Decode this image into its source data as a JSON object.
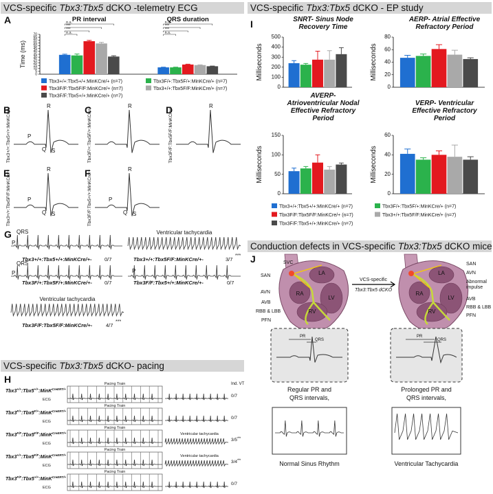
{
  "header_ecg": [
    "VCS-specific",
    "Tbx3:Tbx5",
    "dCKO -telemetry ECG"
  ],
  "header_ep": [
    "VCS-specific",
    "Tbx3:Tbx5",
    "dCKO - EP study"
  ],
  "header_pacing": [
    "VCS-specific",
    "Tbx3:Tbx5",
    "dCKO- pacing"
  ],
  "header_conduction": [
    "Conduction defects in VCS-specific",
    "Tbx3:Tbx5",
    "dCKO mice"
  ],
  "chart_data": [
    {
      "type": "bar",
      "letter": "A",
      "categories": [
        "PR interval",
        "QRS duration"
      ],
      "y_label": "Time (ms)",
      "ylim": [
        0,
        70
      ],
      "yticks": [
        0,
        5,
        10,
        15,
        20,
        25,
        30,
        35,
        40,
        45,
        50,
        55,
        60,
        65,
        70
      ],
      "significance": [
        [
          "n.s.",
          "***",
          "***",
          "n.s."
        ],
        [
          "n.s.",
          "***",
          "***",
          "n.s."
        ]
      ],
      "series": [
        {
          "name": "Tbx3+/+:Tbx5+/+:MinKCre/+ (n=7)",
          "color": "#1f6fd1",
          "values": [
            34,
            12
          ],
          "errors": [
            1.2,
            0.4
          ]
        },
        {
          "name": "Tbx3F/+:Tbx5F/+:MinKCre/+ (n=7)",
          "color": "#2bb24c",
          "values": [
            33,
            12
          ],
          "errors": [
            2.5,
            0.4
          ]
        },
        {
          "name": "Tbx3F/F:Tbx5F/F:MinKCre/+ (n=7)",
          "color": "#e3191f",
          "values": [
            58,
            17
          ],
          "errors": [
            1.5,
            0.6
          ]
        },
        {
          "name": "Tbx3+/+:Tbx5F/F:MinKCre/+ (n=7)",
          "color": "#a9a9a9",
          "values": [
            54,
            16
          ],
          "errors": [
            2,
            0.5
          ]
        },
        {
          "name": "Tbx3F/F:Tbx5+/+:MinKCre/+ (n=7)",
          "color": "#4a4a4a",
          "values": [
            31,
            14
          ],
          "errors": [
            1.5,
            0.4
          ]
        }
      ]
    },
    {
      "type": "bar",
      "letter": "I",
      "title": [
        "SNRT- Sinus Node",
        "Recovery Time"
      ],
      "y_label": "Milliseconds",
      "ylim": [
        0,
        500
      ],
      "yticks": [
        0,
        100,
        200,
        300,
        400,
        500
      ],
      "series": [
        {
          "name": "Tbx3+/+:Tbx5+/+:MinKCre/+ (n=7)",
          "color": "#1f6fd1",
          "values": [
            240
          ],
          "errors": [
            25
          ]
        },
        {
          "name": "Tbx3F/+:Tbx5F/+:MinKCre/+ (n=7)",
          "color": "#2bb24c",
          "values": [
            225
          ],
          "errors": [
            12
          ]
        },
        {
          "name": "Tbx3F/F:Tbx5F/F:MinKCre/+ (n=7)",
          "color": "#e3191f",
          "values": [
            275
          ],
          "errors": [
            85
          ]
        },
        {
          "name": "Tbx3+/+:Tbx5F/F:MinKCre/+ (n=7)",
          "color": "#a9a9a9",
          "values": [
            275
          ],
          "errors": [
            90
          ]
        },
        {
          "name": "Tbx3F/F:Tbx5+/+:MinKCre/+ (n=7)",
          "color": "#4a4a4a",
          "values": [
            330
          ],
          "errors": [
            65
          ]
        }
      ]
    },
    {
      "type": "bar",
      "title": [
        "AERP- Atrial Effective",
        "Refractory Period"
      ],
      "y_label": "Milliseconds",
      "ylim": [
        0,
        80
      ],
      "yticks": [
        0,
        20,
        40,
        60,
        80
      ],
      "series": [
        {
          "color": "#1f6fd1",
          "values": [
            47
          ],
          "errors": [
            4
          ]
        },
        {
          "color": "#2bb24c",
          "values": [
            50
          ],
          "errors": [
            3
          ]
        },
        {
          "color": "#e3191f",
          "values": [
            61
          ],
          "errors": [
            7
          ]
        },
        {
          "color": "#a9a9a9",
          "values": [
            52
          ],
          "errors": [
            7
          ]
        },
        {
          "color": "#4a4a4a",
          "values": [
            45
          ],
          "errors": [
            2
          ]
        }
      ]
    },
    {
      "type": "bar",
      "title": [
        "AVERP-",
        "Atrioventricular Nodal",
        "Effective Refractory",
        "Period"
      ],
      "y_label": "Milliseconds",
      "ylim": [
        0,
        150
      ],
      "yticks": [
        0,
        50,
        100,
        150
      ],
      "series": [
        {
          "color": "#1f6fd1",
          "values": [
            58
          ],
          "errors": [
            8
          ]
        },
        {
          "color": "#2bb24c",
          "values": [
            65
          ],
          "errors": [
            5
          ]
        },
        {
          "color": "#e3191f",
          "values": [
            80
          ],
          "errors": [
            20
          ]
        },
        {
          "color": "#a9a9a9",
          "values": [
            62
          ],
          "errors": [
            8
          ]
        },
        {
          "color": "#4a4a4a",
          "values": [
            75
          ],
          "errors": [
            4
          ]
        }
      ]
    },
    {
      "type": "bar",
      "title": [
        "VERP- Ventricular",
        "Effective Refractory",
        "Period"
      ],
      "y_label": "Milliseconds",
      "ylim": [
        0,
        60
      ],
      "yticks": [
        0,
        20,
        40,
        60
      ],
      "series": [
        {
          "color": "#1f6fd1",
          "values": [
            41
          ],
          "errors": [
            5
          ]
        },
        {
          "color": "#2bb24c",
          "values": [
            35
          ],
          "errors": [
            2
          ]
        },
        {
          "color": "#e3191f",
          "values": [
            40
          ],
          "errors": [
            4
          ]
        },
        {
          "color": "#a9a9a9",
          "values": [
            38
          ],
          "errors": [
            12
          ]
        },
        {
          "color": "#4a4a4a",
          "values": [
            35
          ],
          "errors": [
            3
          ]
        }
      ]
    }
  ],
  "ecg_panels": [
    {
      "letter": "B",
      "genotype": "Tbx3+/+:Tbx5+/+:MinKCre/+",
      "waves": [
        "P",
        "Q",
        "R",
        "S"
      ]
    },
    {
      "letter": "C",
      "genotype": "Tbx3F/+:Tbx5F/+:MinKCre/+",
      "waves": [
        "R"
      ]
    },
    {
      "letter": "D",
      "genotype": "Tbx3F/F:Tbx5F/F:MinKCre/+",
      "waves": [
        "R"
      ]
    },
    {
      "letter": "E",
      "genotype": "Tbx3+/+:Tbx5F/F:MinKCre/+",
      "waves": [
        "P",
        "Q",
        "R",
        "S"
      ]
    },
    {
      "letter": "F",
      "genotype": "Tbx3F/F:Tbx5+/+:MinKCre/+",
      "waves": [
        "P",
        "Q",
        "R",
        "S"
      ]
    }
  ],
  "telemetry": {
    "letter": "G",
    "traces": [
      {
        "labels": [
          "QRS",
          "P"
        ],
        "genotype": "Tbx3+/+:Tbx5+/+:MinKCre/+-",
        "count": "0/7"
      },
      {
        "note": "Ventricular tachycardia",
        "genotype": "Tbx3+/+:Tbx5F/F:MinKCre/+-",
        "count": "3/7",
        "stars": "***"
      },
      {
        "labels": [
          "QRS",
          "P"
        ],
        "genotype": "Tbx3F/+:Tbx5F/+:MinKCre/+-",
        "count": "0/7"
      },
      {
        "labels": [
          "P"
        ],
        "genotype": "Tbx3F/F:Tbx5+/+:MinKCre/+-",
        "count": "0/7"
      },
      {
        "note": "Ventricular tachycardia",
        "genotype": "Tbx3F/F:Tbx5F/F:MinKCre/+-",
        "count": "4/7",
        "stars": "***"
      }
    ]
  },
  "pacing": {
    "letter": "H",
    "column_label": "Ind. VT",
    "train_label": "Pacing Train",
    "trace_label": "ECG",
    "rows": [
      {
        "genotype": [
          "Tbx3",
          "+/+",
          ":Tbx5",
          "+/+",
          ":MinK",
          "CreERT/+"
        ],
        "count": "0/7"
      },
      {
        "genotype": [
          "Tbx3",
          "F/+",
          ":Tbx5",
          "F/+",
          ":MinK",
          "CreERT/+"
        ],
        "count": "0/7"
      },
      {
        "genotype": [
          "Tbx3",
          "F/F",
          ":Tbx5",
          "F/F",
          ":MinK",
          "CreERT/+"
        ],
        "count": "3/5",
        "stars": "**",
        "note": "Ventricular tachycardia"
      },
      {
        "genotype": [
          "Tbx3",
          "+/+",
          ":Tbx5",
          "F/F",
          ":MinK",
          "CreERT/+"
        ],
        "count": "3/4",
        "stars": "**",
        "note": "Ventricular tachycardia"
      },
      {
        "genotype": [
          "Tbx3",
          "F/F",
          ":Tbx5",
          "+/+",
          ":MinK",
          "CreERT/+"
        ],
        "count": "0/7"
      }
    ]
  },
  "conduction": {
    "letter": "J",
    "normal_heart": [
      "SVC",
      "SAN",
      "AVN",
      "AVB",
      "RBB & LBB",
      "PFN",
      "LA",
      "RA",
      "LV",
      "RV"
    ],
    "mutant_heart": [
      "SAN",
      "AVN",
      "Abnormal",
      "impulse",
      "AVB",
      "RBB & LBB",
      "PFN",
      "LA",
      "RA",
      "LV",
      "RV"
    ],
    "arrow": [
      "VCS-specific",
      "Tbx3:Tbx5 dCKO"
    ],
    "ecg_boxes": [
      {
        "interval_labels": [
          "PR",
          "QRS"
        ],
        "caption": [
          "Regular PR and",
          "QRS intervals,"
        ],
        "rhythm": "Normal Sinus Rhythm"
      },
      {
        "interval_labels": [
          "PR",
          "QRS"
        ],
        "caption": [
          "Prolonged PR and",
          "QRS intervals,"
        ],
        "rhythm": "Ventricular Tachycardia"
      }
    ]
  }
}
